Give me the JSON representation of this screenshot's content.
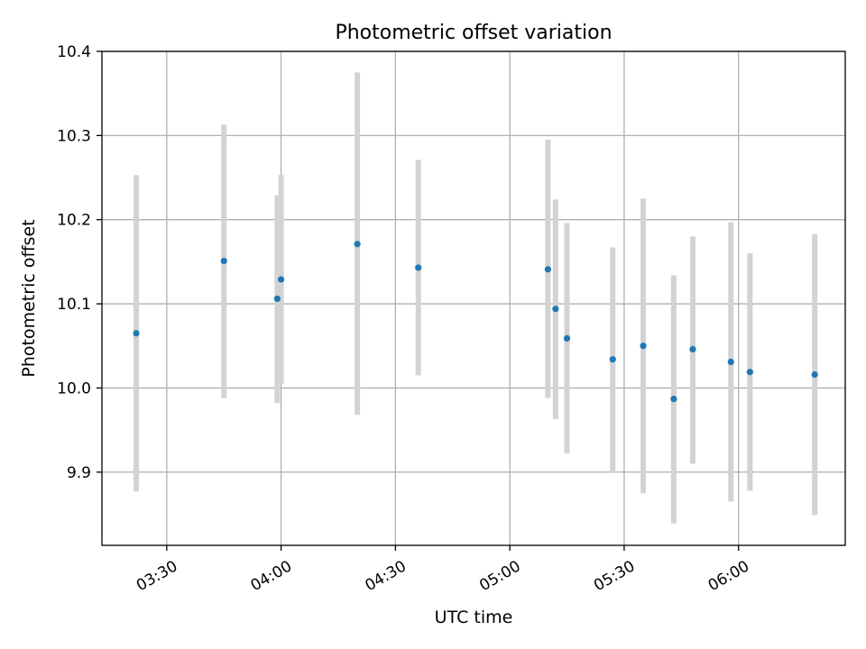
{
  "chart_data": {
    "type": "scatter",
    "title": "Photometric offset variation",
    "xlabel": "UTC time",
    "ylabel": "Photometric offset",
    "x_tick_labels": [
      "03:30",
      "04:00",
      "04:30",
      "05:00",
      "05:30",
      "06:00"
    ],
    "y_tick_labels": [
      "9.9",
      "10.0",
      "10.1",
      "10.2",
      "10.3",
      "10.4"
    ],
    "x_ticks": [
      "03:30",
      "04:00",
      "04:30",
      "05:00",
      "05:30",
      "06:00"
    ],
    "y_ticks": [
      9.9,
      10.0,
      10.1,
      10.2,
      10.3,
      10.4
    ],
    "xlim": [
      "03:13",
      "06:28"
    ],
    "ylim": [
      9.813,
      10.4
    ],
    "grid": true,
    "colors": {
      "point": "#1f77b4",
      "errorbar": "#d3d3d3",
      "grid": "#b0b0b0"
    },
    "points": [
      {
        "x": "03:22",
        "y": 10.065,
        "ylow": 9.877,
        "yhigh": 10.253
      },
      {
        "x": "03:45",
        "y": 10.151,
        "ylow": 9.988,
        "yhigh": 10.313
      },
      {
        "x": "03:59",
        "y": 10.106,
        "ylow": 9.982,
        "yhigh": 10.229
      },
      {
        "x": "04:00",
        "y": 10.129,
        "ylow": 10.005,
        "yhigh": 10.253
      },
      {
        "x": "04:20",
        "y": 10.171,
        "ylow": 9.968,
        "yhigh": 10.375
      },
      {
        "x": "04:36",
        "y": 10.143,
        "ylow": 10.015,
        "yhigh": 10.271
      },
      {
        "x": "05:10",
        "y": 10.141,
        "ylow": 9.988,
        "yhigh": 10.295
      },
      {
        "x": "05:12",
        "y": 10.094,
        "ylow": 9.963,
        "yhigh": 10.224
      },
      {
        "x": "05:15",
        "y": 10.059,
        "ylow": 9.922,
        "yhigh": 10.196
      },
      {
        "x": "05:27",
        "y": 10.034,
        "ylow": 9.899,
        "yhigh": 10.167
      },
      {
        "x": "05:35",
        "y": 10.05,
        "ylow": 9.875,
        "yhigh": 10.225
      },
      {
        "x": "05:43",
        "y": 9.987,
        "ylow": 9.839,
        "yhigh": 10.134
      },
      {
        "x": "05:48",
        "y": 10.046,
        "ylow": 9.91,
        "yhigh": 10.18
      },
      {
        "x": "05:58",
        "y": 10.031,
        "ylow": 9.865,
        "yhigh": 10.197
      },
      {
        "x": "06:03",
        "y": 10.019,
        "ylow": 9.878,
        "yhigh": 10.16
      },
      {
        "x": "06:20",
        "y": 10.016,
        "ylow": 9.849,
        "yhigh": 10.183
      }
    ]
  }
}
